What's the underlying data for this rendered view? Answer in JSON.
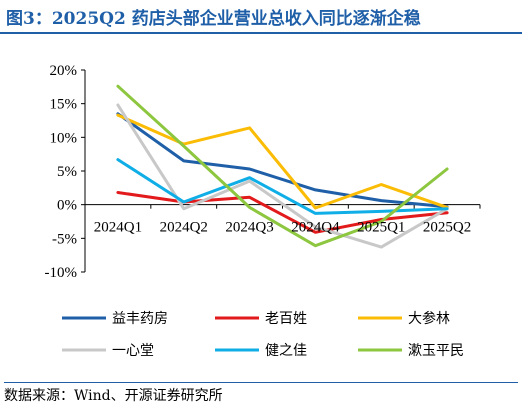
{
  "header": {
    "title": "图3：2025Q2 药店头部企业营业总收入同比逐渐企稳"
  },
  "footer": {
    "source": "数据来源：Wind、开源证券研究所"
  },
  "chart_data": {
    "type": "line",
    "title": "图3：2025Q2 药店头部企业营业总收入同比逐渐企稳",
    "xlabel": "",
    "ylabel": "",
    "x": [
      "2024Q1",
      "2024Q2",
      "2024Q3",
      "2024Q4",
      "2025Q1",
      "2025Q2"
    ],
    "y_ticks": [
      "20%",
      "15%",
      "10%",
      "5%",
      "0%",
      "-5%",
      "-10%"
    ],
    "ylim": [
      -10,
      20
    ],
    "y_unit": "%",
    "grid": false,
    "legend_position": "bottom",
    "series": [
      {
        "name": "益丰药房",
        "color": "#1f5fa8",
        "values": [
          13.5,
          6.5,
          5.3,
          2.2,
          0.6,
          -0.3
        ]
      },
      {
        "name": "老百姓",
        "color": "#e31a1c",
        "values": [
          1.8,
          0.4,
          1.1,
          -4.1,
          -2.2,
          -1.2
        ]
      },
      {
        "name": "大参林",
        "color": "#fbbc05",
        "values": [
          13.3,
          9.0,
          11.4,
          -0.5,
          3.0,
          -0.4
        ]
      },
      {
        "name": "一心堂",
        "color": "#c8c8c8",
        "values": [
          14.8,
          -0.6,
          3.5,
          -3.3,
          -6.3,
          -0.6
        ]
      },
      {
        "name": "健之佳",
        "color": "#10aee6",
        "values": [
          6.7,
          0.4,
          4.0,
          -1.3,
          -1.0,
          -0.6
        ]
      },
      {
        "name": "漱玉平民",
        "color": "#8dc63f",
        "values": [
          17.6,
          8.7,
          -0.4,
          -6.1,
          -2.5,
          5.3
        ]
      }
    ]
  }
}
